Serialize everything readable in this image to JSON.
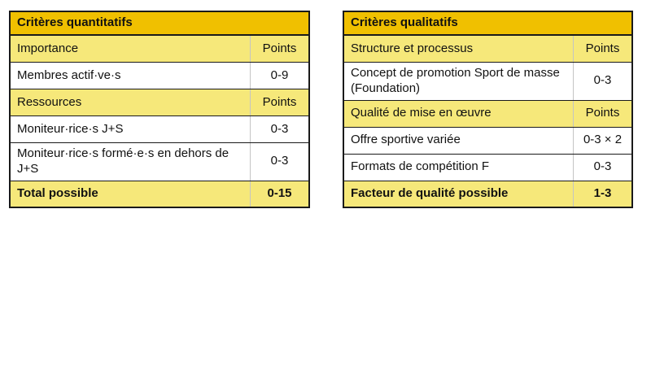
{
  "colors": {
    "header_bg": "#f0c000",
    "band_bg": "#f6e87a",
    "plain_bg": "#ffffff",
    "border_dark": "#1a1a1a",
    "divider": "#c4c4c4",
    "text": "#111111",
    "page_bg": "#ffffff"
  },
  "tables": [
    {
      "title": "Critères quantitatifs",
      "rows": [
        {
          "type": "subheader",
          "label": "Importance",
          "value": "Points"
        },
        {
          "type": "data",
          "label": "Membres actif·ve·s",
          "value": "0-9"
        },
        {
          "type": "subheader",
          "label": "Ressources",
          "value": "Points"
        },
        {
          "type": "data",
          "label": "Moniteur·rice·s J+S",
          "value": "0-3"
        },
        {
          "type": "data",
          "label": "Moniteur·rice·s formé·e·s en dehors de J+S",
          "value": "0-3"
        },
        {
          "type": "total",
          "label": "Total possible",
          "value": "0-15"
        }
      ]
    },
    {
      "title": "Critères qualitatifs",
      "rows": [
        {
          "type": "subheader",
          "label": "Structure et processus",
          "value": "Points"
        },
        {
          "type": "data",
          "label": "Concept de promotion Sport de masse (Foundation)",
          "value": "0-3"
        },
        {
          "type": "subheader",
          "label": "Qualité de mise en œuvre",
          "value": "Points"
        },
        {
          "type": "data",
          "label": "Offre sportive variée",
          "value": "0-3 × 2"
        },
        {
          "type": "data",
          "label": "Formats de compétition F",
          "value": "0-3"
        },
        {
          "type": "total",
          "label": "Facteur de qualité possible",
          "value": "1-3"
        }
      ]
    }
  ]
}
